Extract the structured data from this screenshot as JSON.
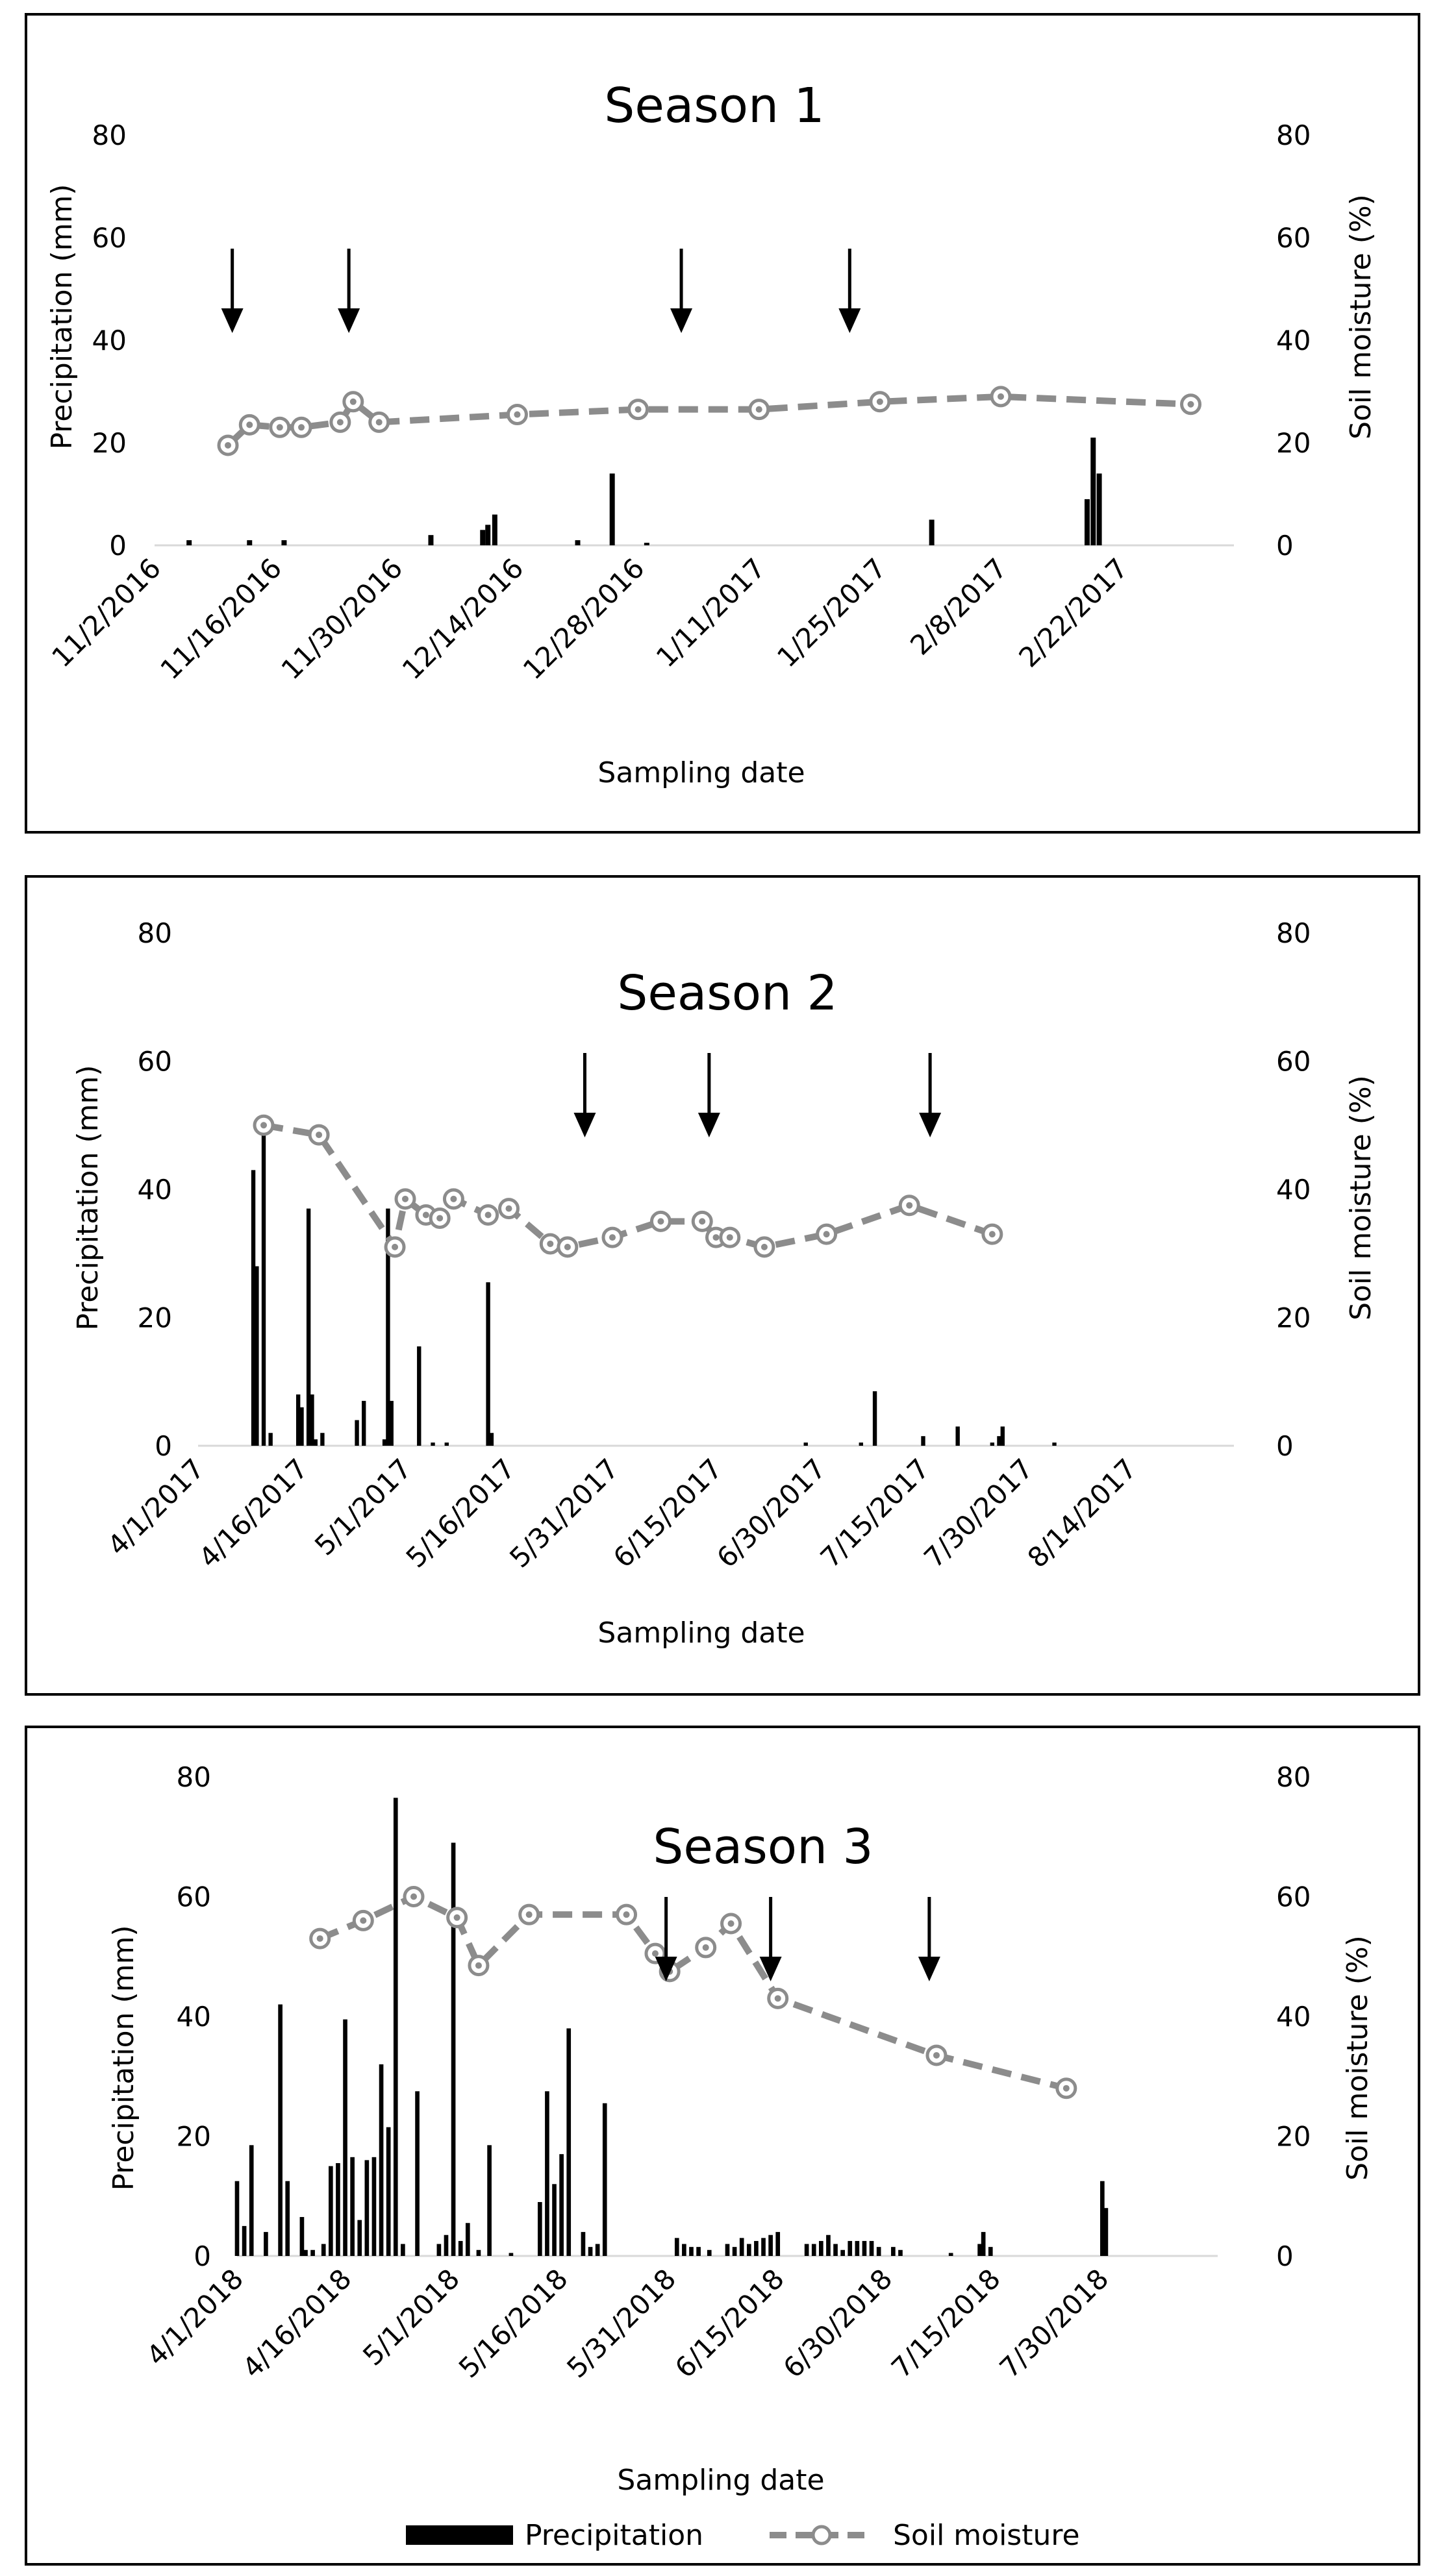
{
  "legend": {
    "precipitation": "Precipitation",
    "soil_moisture": "Soil moisture"
  },
  "colors": {
    "bar": "#000000",
    "line": "#8c8c8c",
    "marker_fill": "#ffffff",
    "frame": "#000000",
    "text": "#000000"
  },
  "chart_data": [
    {
      "type": "bar",
      "title": "Season 1",
      "xlabel": "Sampling date",
      "ylabel": "Precipitation (mm)",
      "y2label": "Soil moisture (%)",
      "ylim": [
        0,
        80
      ],
      "y2lim": [
        0,
        80
      ],
      "yticks": [
        "0",
        "20",
        "40",
        "60",
        "80"
      ],
      "y2ticks": [
        "0",
        "20",
        "40",
        "60",
        "80"
      ],
      "xlim_days": [
        0,
        125
      ],
      "xticks": [
        {
          "label": "11/2/2016",
          "day": 0
        },
        {
          "label": "11/16/2016",
          "day": 14
        },
        {
          "label": "11/30/2016",
          "day": 28
        },
        {
          "label": "12/14/2016",
          "day": 42
        },
        {
          "label": "12/28/2016",
          "day": 56
        },
        {
          "label": "1/11/2017",
          "day": 70
        },
        {
          "label": "1/25/2017",
          "day": 84
        },
        {
          "label": "2/8/2017",
          "day": 98
        },
        {
          "label": "2/22/2017",
          "day": 112
        }
      ],
      "precipitation": [
        {
          "day": 4,
          "value": 1
        },
        {
          "day": 11,
          "value": 1
        },
        {
          "day": 15,
          "value": 1
        },
        {
          "day": 32,
          "value": 2
        },
        {
          "day": 38,
          "value": 3
        },
        {
          "day": 38.6,
          "value": 4
        },
        {
          "day": 39.4,
          "value": 6
        },
        {
          "day": 49,
          "value": 1
        },
        {
          "day": 53,
          "value": 14
        },
        {
          "day": 57,
          "value": 0.5
        },
        {
          "day": 90,
          "value": 5
        },
        {
          "day": 108,
          "value": 9
        },
        {
          "day": 108.7,
          "value": 21
        },
        {
          "day": 109.4,
          "value": 14
        }
      ],
      "soil_moisture": [
        {
          "day": 8.5,
          "value": 19.5
        },
        {
          "day": 11,
          "value": 23.5
        },
        {
          "day": 14.5,
          "value": 23
        },
        {
          "day": 17,
          "value": 23
        },
        {
          "day": 21.5,
          "value": 24
        },
        {
          "day": 23,
          "value": 28
        },
        {
          "day": 26,
          "value": 24
        },
        {
          "day": 42,
          "value": 25.5
        },
        {
          "day": 56,
          "value": 26.5
        },
        {
          "day": 70,
          "value": 26.5
        },
        {
          "day": 84,
          "value": 28
        },
        {
          "day": 98,
          "value": 29
        },
        {
          "day": 120,
          "value": 27.5
        }
      ],
      "arrows_day": [
        9,
        22.5,
        61,
        80.5
      ]
    },
    {
      "type": "bar",
      "title": "Season 2",
      "xlabel": "Sampling date",
      "ylabel": "Precipitation (mm)",
      "y2label": "Soil moisture (%)",
      "ylim": [
        0,
        80
      ],
      "y2lim": [
        0,
        80
      ],
      "yticks": [
        "0",
        "20",
        "40",
        "60",
        "80"
      ],
      "y2ticks": [
        "0",
        "20",
        "40",
        "60",
        "80"
      ],
      "xlim_days": [
        0,
        150
      ],
      "xticks": [
        {
          "label": "4/1/2017",
          "day": 0
        },
        {
          "label": "4/16/2017",
          "day": 15
        },
        {
          "label": "5/1/2017",
          "day": 30
        },
        {
          "label": "5/16/2017",
          "day": 45
        },
        {
          "label": "5/31/2017",
          "day": 60
        },
        {
          "label": "6/15/2017",
          "day": 75
        },
        {
          "label": "6/30/2017",
          "day": 90
        },
        {
          "label": "7/15/2017",
          "day": 105
        },
        {
          "label": "7/30/2017",
          "day": 120
        },
        {
          "label": "8/14/2017",
          "day": 135
        }
      ],
      "precipitation": [
        {
          "day": 8,
          "value": 43
        },
        {
          "day": 8.5,
          "value": 28
        },
        {
          "day": 9.5,
          "value": 49
        },
        {
          "day": 10.5,
          "value": 2
        },
        {
          "day": 14.5,
          "value": 8
        },
        {
          "day": 15,
          "value": 6
        },
        {
          "day": 16,
          "value": 37
        },
        {
          "day": 16.5,
          "value": 8
        },
        {
          "day": 17,
          "value": 1
        },
        {
          "day": 18,
          "value": 2
        },
        {
          "day": 23,
          "value": 4
        },
        {
          "day": 24,
          "value": 7
        },
        {
          "day": 27,
          "value": 1
        },
        {
          "day": 27.5,
          "value": 37
        },
        {
          "day": 28,
          "value": 7
        },
        {
          "day": 32,
          "value": 15.5
        },
        {
          "day": 34,
          "value": 0.5
        },
        {
          "day": 36,
          "value": 0.5
        },
        {
          "day": 42,
          "value": 25.5
        },
        {
          "day": 42.5,
          "value": 2
        },
        {
          "day": 88,
          "value": 0.5
        },
        {
          "day": 96,
          "value": 0.5
        },
        {
          "day": 98,
          "value": 8.5
        },
        {
          "day": 105,
          "value": 1.5
        },
        {
          "day": 110,
          "value": 3
        },
        {
          "day": 115,
          "value": 0.5
        },
        {
          "day": 116,
          "value": 1.5
        },
        {
          "day": 116.5,
          "value": 3
        },
        {
          "day": 124,
          "value": 0.5
        }
      ],
      "soil_moisture": [
        {
          "day": 9.5,
          "value": 50
        },
        {
          "day": 17.5,
          "value": 48.5
        },
        {
          "day": 28.5,
          "value": 31
        },
        {
          "day": 30,
          "value": 38.5
        },
        {
          "day": 33,
          "value": 36
        },
        {
          "day": 35,
          "value": 35.5
        },
        {
          "day": 37,
          "value": 38.5
        },
        {
          "day": 42,
          "value": 36
        },
        {
          "day": 45,
          "value": 37
        },
        {
          "day": 51,
          "value": 31.5
        },
        {
          "day": 53.5,
          "value": 31
        },
        {
          "day": 60,
          "value": 32.5
        },
        {
          "day": 67,
          "value": 35
        },
        {
          "day": 73,
          "value": 35
        },
        {
          "day": 75,
          "value": 32.5
        },
        {
          "day": 77,
          "value": 32.5
        },
        {
          "day": 82,
          "value": 31
        },
        {
          "day": 91,
          "value": 33
        },
        {
          "day": 103,
          "value": 37.5
        },
        {
          "day": 115,
          "value": 33
        }
      ],
      "arrows_day": [
        56,
        74,
        106
      ]
    },
    {
      "type": "bar",
      "title": "Season 3",
      "xlabel": "Sampling date",
      "ylabel": "Precipitation (mm)",
      "y2label": "Soil moisture (%)",
      "ylim": [
        0,
        80
      ],
      "y2lim": [
        0,
        80
      ],
      "yticks": [
        "0",
        "20",
        "40",
        "60",
        "80"
      ],
      "y2ticks": [
        "0",
        "20",
        "40",
        "60",
        "80"
      ],
      "xlim_days": [
        0,
        136
      ],
      "xticks": [
        {
          "label": "4/1/2018",
          "day": 0
        },
        {
          "label": "4/16/2018",
          "day": 15
        },
        {
          "label": "5/1/2018",
          "day": 30
        },
        {
          "label": "5/16/2018",
          "day": 45
        },
        {
          "label": "5/31/2018",
          "day": 60
        },
        {
          "label": "6/15/2018",
          "day": 75
        },
        {
          "label": "6/30/2018",
          "day": 90
        },
        {
          "label": "7/15/2018",
          "day": 105
        },
        {
          "label": "7/30/2018",
          "day": 120
        }
      ],
      "precipitation": [
        {
          "day": 0,
          "value": 12.5
        },
        {
          "day": 1,
          "value": 5
        },
        {
          "day": 2,
          "value": 18.5
        },
        {
          "day": 4,
          "value": 4
        },
        {
          "day": 6,
          "value": 42
        },
        {
          "day": 7,
          "value": 12.5
        },
        {
          "day": 9,
          "value": 6.5
        },
        {
          "day": 9.5,
          "value": 1
        },
        {
          "day": 10.5,
          "value": 1
        },
        {
          "day": 12,
          "value": 2
        },
        {
          "day": 13,
          "value": 15
        },
        {
          "day": 14,
          "value": 15.5
        },
        {
          "day": 15,
          "value": 39.5
        },
        {
          "day": 16,
          "value": 16.5
        },
        {
          "day": 17,
          "value": 6
        },
        {
          "day": 18,
          "value": 16
        },
        {
          "day": 19,
          "value": 16.5
        },
        {
          "day": 20,
          "value": 32
        },
        {
          "day": 21,
          "value": 21.5
        },
        {
          "day": 22,
          "value": 76.5
        },
        {
          "day": 23,
          "value": 2
        },
        {
          "day": 25,
          "value": 27.5
        },
        {
          "day": 28,
          "value": 2
        },
        {
          "day": 29,
          "value": 3.5
        },
        {
          "day": 30,
          "value": 69
        },
        {
          "day": 31,
          "value": 2.5
        },
        {
          "day": 32,
          "value": 5.5
        },
        {
          "day": 33.5,
          "value": 1
        },
        {
          "day": 35,
          "value": 18.5
        },
        {
          "day": 38,
          "value": 0.5
        },
        {
          "day": 42,
          "value": 9
        },
        {
          "day": 43,
          "value": 27.5
        },
        {
          "day": 44,
          "value": 12
        },
        {
          "day": 45,
          "value": 17
        },
        {
          "day": 46,
          "value": 38
        },
        {
          "day": 48,
          "value": 4
        },
        {
          "day": 49,
          "value": 1.5
        },
        {
          "day": 50,
          "value": 2
        },
        {
          "day": 51,
          "value": 25.5
        },
        {
          "day": 61,
          "value": 3
        },
        {
          "day": 62,
          "value": 2
        },
        {
          "day": 63,
          "value": 1.5
        },
        {
          "day": 64,
          "value": 1.5
        },
        {
          "day": 65.5,
          "value": 1
        },
        {
          "day": 68,
          "value": 2
        },
        {
          "day": 69,
          "value": 1.5
        },
        {
          "day": 70,
          "value": 3
        },
        {
          "day": 71,
          "value": 2
        },
        {
          "day": 72,
          "value": 2.5
        },
        {
          "day": 73,
          "value": 3
        },
        {
          "day": 74,
          "value": 3.5
        },
        {
          "day": 75,
          "value": 4
        },
        {
          "day": 79,
          "value": 2
        },
        {
          "day": 80,
          "value": 2
        },
        {
          "day": 81,
          "value": 2.5
        },
        {
          "day": 82,
          "value": 3.5
        },
        {
          "day": 83,
          "value": 2
        },
        {
          "day": 84,
          "value": 1
        },
        {
          "day": 85,
          "value": 2.5
        },
        {
          "day": 86,
          "value": 2.5
        },
        {
          "day": 87,
          "value": 2.5
        },
        {
          "day": 88,
          "value": 2.5
        },
        {
          "day": 89,
          "value": 1.5
        },
        {
          "day": 91,
          "value": 1.5
        },
        {
          "day": 92,
          "value": 1
        },
        {
          "day": 99,
          "value": 0.5
        },
        {
          "day": 103,
          "value": 2
        },
        {
          "day": 103.5,
          "value": 4
        },
        {
          "day": 104.5,
          "value": 1.5
        },
        {
          "day": 120,
          "value": 12.5
        },
        {
          "day": 120.5,
          "value": 8
        }
      ],
      "soil_moisture": [
        {
          "day": 11.5,
          "value": 53
        },
        {
          "day": 17.5,
          "value": 56
        },
        {
          "day": 24.5,
          "value": 60
        },
        {
          "day": 30.5,
          "value": 56.5
        },
        {
          "day": 33.5,
          "value": 48.5
        },
        {
          "day": 40.5,
          "value": 57
        },
        {
          "day": 54,
          "value": 57
        },
        {
          "day": 58,
          "value": 50.5
        },
        {
          "day": 60,
          "value": 47.5
        },
        {
          "day": 65,
          "value": 51.5
        },
        {
          "day": 68.5,
          "value": 55.5
        },
        {
          "day": 75,
          "value": 43
        },
        {
          "day": 97,
          "value": 33.5
        },
        {
          "day": 115,
          "value": 28
        }
      ],
      "arrows_day": [
        59.5,
        74,
        96
      ]
    }
  ]
}
